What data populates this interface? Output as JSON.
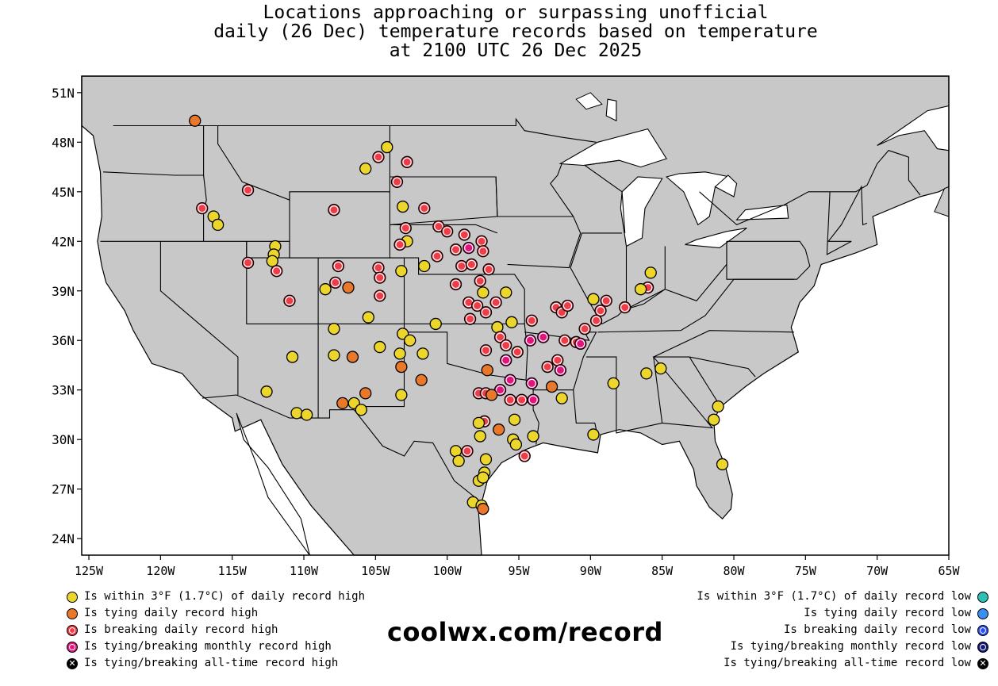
{
  "title": {
    "line1": "Locations approaching or surpassing unofficial",
    "line2": "daily (26 Dec) temperature records based on temperature",
    "line3": "at 2100 UTC 26 Dec 2025"
  },
  "chart_data": {
    "type": "scatter-map",
    "region": "Contiguous United States",
    "xaxis": {
      "ticks": [
        -125,
        -120,
        -115,
        -110,
        -105,
        -100,
        -95,
        -90,
        -85,
        -80,
        -75,
        -70,
        -65
      ],
      "labels": [
        "125W",
        "120W",
        "115W",
        "110W",
        "105W",
        "100W",
        "95W",
        "90W",
        "85W",
        "80W",
        "75W",
        "70W",
        "65W"
      ],
      "range": [
        -125.5,
        -65
      ]
    },
    "yaxis": {
      "ticks": [
        24,
        27,
        30,
        33,
        36,
        39,
        42,
        45,
        48,
        51
      ],
      "labels": [
        "24N",
        "27N",
        "30N",
        "33N",
        "36N",
        "39N",
        "42N",
        "45N",
        "48N",
        "51N"
      ],
      "range": [
        23,
        52
      ]
    },
    "colors": {
      "within_high": "#ecd62c",
      "tying_high": "#e9782a",
      "breaking_high": "#ee3d48",
      "monthly_high": "#e3157d",
      "within_low": "#2bc1b4",
      "tying_low": "#3b8ff2",
      "breaking_low": "#2b4ff0",
      "monthly_low": "#15197e",
      "land": "#c8c8c8",
      "water": "#ffffff"
    },
    "points": [
      {
        "lon": -117.6,
        "lat": 49.3,
        "cat": "tying_high"
      },
      {
        "lon": -104.2,
        "lat": 47.7,
        "cat": "within_high"
      },
      {
        "lon": -104.8,
        "lat": 47.1,
        "cat": "breaking_high"
      },
      {
        "lon": -105.7,
        "lat": 46.4,
        "cat": "within_high"
      },
      {
        "lon": -102.8,
        "lat": 46.8,
        "cat": "breaking_high"
      },
      {
        "lon": -113.9,
        "lat": 45.1,
        "cat": "breaking_high"
      },
      {
        "lon": -103.5,
        "lat": 45.6,
        "cat": "breaking_high"
      },
      {
        "lon": -103.1,
        "lat": 44.1,
        "cat": "within_high"
      },
      {
        "lon": -101.6,
        "lat": 44.0,
        "cat": "breaking_high"
      },
      {
        "lon": -117.1,
        "lat": 44.0,
        "cat": "breaking_high"
      },
      {
        "lon": -116.3,
        "lat": 43.5,
        "cat": "within_high"
      },
      {
        "lon": -116.0,
        "lat": 43.0,
        "cat": "within_high"
      },
      {
        "lon": -107.9,
        "lat": 43.9,
        "cat": "breaking_high"
      },
      {
        "lon": -102.9,
        "lat": 42.8,
        "cat": "breaking_high"
      },
      {
        "lon": -102.8,
        "lat": 42.0,
        "cat": "within_high"
      },
      {
        "lon": -103.3,
        "lat": 41.8,
        "cat": "breaking_high"
      },
      {
        "lon": -100.6,
        "lat": 42.9,
        "cat": "breaking_high"
      },
      {
        "lon": -100.0,
        "lat": 42.6,
        "cat": "breaking_high"
      },
      {
        "lon": -98.8,
        "lat": 42.4,
        "cat": "breaking_high"
      },
      {
        "lon": -99.4,
        "lat": 41.5,
        "cat": "breaking_high"
      },
      {
        "lon": -98.5,
        "lat": 41.6,
        "cat": "monthly_high"
      },
      {
        "lon": -97.6,
        "lat": 42.0,
        "cat": "breaking_high"
      },
      {
        "lon": -97.5,
        "lat": 41.4,
        "cat": "breaking_high"
      },
      {
        "lon": -100.7,
        "lat": 41.1,
        "cat": "breaking_high"
      },
      {
        "lon": -101.6,
        "lat": 40.5,
        "cat": "within_high"
      },
      {
        "lon": -99.0,
        "lat": 40.5,
        "cat": "breaking_high"
      },
      {
        "lon": -98.3,
        "lat": 40.6,
        "cat": "breaking_high"
      },
      {
        "lon": -97.1,
        "lat": 40.3,
        "cat": "breaking_high"
      },
      {
        "lon": -112.0,
        "lat": 41.7,
        "cat": "within_high"
      },
      {
        "lon": -112.1,
        "lat": 41.2,
        "cat": "within_high"
      },
      {
        "lon": -112.2,
        "lat": 40.8,
        "cat": "within_high"
      },
      {
        "lon": -111.9,
        "lat": 40.2,
        "cat": "breaking_high"
      },
      {
        "lon": -113.9,
        "lat": 40.7,
        "cat": "breaking_high"
      },
      {
        "lon": -107.6,
        "lat": 40.5,
        "cat": "breaking_high"
      },
      {
        "lon": -104.8,
        "lat": 40.4,
        "cat": "breaking_high"
      },
      {
        "lon": -104.7,
        "lat": 39.8,
        "cat": "breaking_high"
      },
      {
        "lon": -103.2,
        "lat": 40.2,
        "cat": "within_high"
      },
      {
        "lon": -107.8,
        "lat": 39.5,
        "cat": "breaking_high"
      },
      {
        "lon": -106.9,
        "lat": 39.2,
        "cat": "tying_high"
      },
      {
        "lon": -108.5,
        "lat": 39.1,
        "cat": "within_high"
      },
      {
        "lon": -104.7,
        "lat": 38.7,
        "cat": "breaking_high"
      },
      {
        "lon": -111.0,
        "lat": 38.4,
        "cat": "breaking_high"
      },
      {
        "lon": -105.5,
        "lat": 37.4,
        "cat": "within_high"
      },
      {
        "lon": -99.4,
        "lat": 39.4,
        "cat": "breaking_high"
      },
      {
        "lon": -97.7,
        "lat": 39.6,
        "cat": "breaking_high"
      },
      {
        "lon": -97.5,
        "lat": 38.9,
        "cat": "within_high"
      },
      {
        "lon": -95.9,
        "lat": 38.9,
        "cat": "within_high"
      },
      {
        "lon": -98.5,
        "lat": 38.3,
        "cat": "breaking_high"
      },
      {
        "lon": -97.9,
        "lat": 38.1,
        "cat": "breaking_high"
      },
      {
        "lon": -97.3,
        "lat": 37.7,
        "cat": "breaking_high"
      },
      {
        "lon": -96.6,
        "lat": 38.3,
        "cat": "breaking_high"
      },
      {
        "lon": -98.4,
        "lat": 37.3,
        "cat": "breaking_high"
      },
      {
        "lon": -95.5,
        "lat": 37.1,
        "cat": "within_high"
      },
      {
        "lon": -94.1,
        "lat": 37.2,
        "cat": "breaking_high"
      },
      {
        "lon": -100.8,
        "lat": 37.0,
        "cat": "within_high"
      },
      {
        "lon": -103.1,
        "lat": 36.4,
        "cat": "within_high"
      },
      {
        "lon": -102.6,
        "lat": 36.0,
        "cat": "within_high"
      },
      {
        "lon": -101.7,
        "lat": 35.2,
        "cat": "within_high"
      },
      {
        "lon": -104.7,
        "lat": 35.6,
        "cat": "within_high"
      },
      {
        "lon": -103.3,
        "lat": 35.2,
        "cat": "within_high"
      },
      {
        "lon": -103.2,
        "lat": 34.4,
        "cat": "tying_high"
      },
      {
        "lon": -101.8,
        "lat": 33.6,
        "cat": "tying_high"
      },
      {
        "lon": -103.2,
        "lat": 32.7,
        "cat": "within_high"
      },
      {
        "lon": -107.9,
        "lat": 36.7,
        "cat": "within_high"
      },
      {
        "lon": -107.9,
        "lat": 35.1,
        "cat": "within_high"
      },
      {
        "lon": -106.6,
        "lat": 35.0,
        "cat": "tying_high"
      },
      {
        "lon": -105.7,
        "lat": 32.8,
        "cat": "tying_high"
      },
      {
        "lon": -107.3,
        "lat": 32.2,
        "cat": "tying_high"
      },
      {
        "lon": -106.5,
        "lat": 32.2,
        "cat": "within_high"
      },
      {
        "lon": -106.0,
        "lat": 31.8,
        "cat": "within_high"
      },
      {
        "lon": -110.8,
        "lat": 35.0,
        "cat": "within_high"
      },
      {
        "lon": -112.6,
        "lat": 32.9,
        "cat": "within_high"
      },
      {
        "lon": -110.5,
        "lat": 31.6,
        "cat": "within_high"
      },
      {
        "lon": -109.8,
        "lat": 31.5,
        "cat": "within_high"
      },
      {
        "lon": -96.5,
        "lat": 36.8,
        "cat": "within_high"
      },
      {
        "lon": -96.3,
        "lat": 36.2,
        "cat": "breaking_high"
      },
      {
        "lon": -97.3,
        "lat": 35.4,
        "cat": "breaking_high"
      },
      {
        "lon": -95.9,
        "lat": 35.7,
        "cat": "breaking_high"
      },
      {
        "lon": -95.1,
        "lat": 35.3,
        "cat": "breaking_high"
      },
      {
        "lon": -94.2,
        "lat": 36.0,
        "cat": "monthly_high"
      },
      {
        "lon": -93.3,
        "lat": 36.2,
        "cat": "monthly_high"
      },
      {
        "lon": -91.8,
        "lat": 36.0,
        "cat": "breaking_high"
      },
      {
        "lon": -92.3,
        "lat": 34.8,
        "cat": "breaking_high"
      },
      {
        "lon": -93.0,
        "lat": 34.4,
        "cat": "breaking_high"
      },
      {
        "lon": -92.1,
        "lat": 34.2,
        "cat": "monthly_high"
      },
      {
        "lon": -95.9,
        "lat": 34.8,
        "cat": "monthly_high"
      },
      {
        "lon": -97.2,
        "lat": 34.2,
        "cat": "tying_high"
      },
      {
        "lon": -95.6,
        "lat": 33.6,
        "cat": "monthly_high"
      },
      {
        "lon": -94.1,
        "lat": 33.4,
        "cat": "monthly_high"
      },
      {
        "lon": -96.3,
        "lat": 33.0,
        "cat": "monthly_high"
      },
      {
        "lon": -92.7,
        "lat": 33.2,
        "cat": "tying_high"
      },
      {
        "lon": -97.8,
        "lat": 32.8,
        "cat": "breaking_high"
      },
      {
        "lon": -97.3,
        "lat": 32.8,
        "cat": "breaking_high"
      },
      {
        "lon": -96.9,
        "lat": 32.7,
        "cat": "tying_high"
      },
      {
        "lon": -95.6,
        "lat": 32.4,
        "cat": "breaking_high"
      },
      {
        "lon": -94.8,
        "lat": 32.4,
        "cat": "breaking_high"
      },
      {
        "lon": -94.0,
        "lat": 32.4,
        "cat": "monthly_high"
      },
      {
        "lon": -92.0,
        "lat": 32.5,
        "cat": "within_high"
      },
      {
        "lon": -97.4,
        "lat": 31.1,
        "cat": "breaking_high"
      },
      {
        "lon": -97.8,
        "lat": 31.0,
        "cat": "within_high"
      },
      {
        "lon": -95.3,
        "lat": 31.2,
        "cat": "within_high"
      },
      {
        "lon": -96.4,
        "lat": 30.6,
        "cat": "tying_high"
      },
      {
        "lon": -97.7,
        "lat": 30.2,
        "cat": "within_high"
      },
      {
        "lon": -95.4,
        "lat": 30.0,
        "cat": "within_high"
      },
      {
        "lon": -95.2,
        "lat": 29.7,
        "cat": "within_high"
      },
      {
        "lon": -94.0,
        "lat": 30.2,
        "cat": "within_high"
      },
      {
        "lon": -94.6,
        "lat": 29.0,
        "cat": "breaking_high"
      },
      {
        "lon": -98.6,
        "lat": 29.3,
        "cat": "breaking_high"
      },
      {
        "lon": -99.4,
        "lat": 29.3,
        "cat": "within_high"
      },
      {
        "lon": -99.2,
        "lat": 28.7,
        "cat": "within_high"
      },
      {
        "lon": -97.3,
        "lat": 28.8,
        "cat": "within_high"
      },
      {
        "lon": -97.4,
        "lat": 28.0,
        "cat": "within_high"
      },
      {
        "lon": -97.8,
        "lat": 27.5,
        "cat": "within_high"
      },
      {
        "lon": -97.5,
        "lat": 27.7,
        "cat": "within_high"
      },
      {
        "lon": -98.2,
        "lat": 26.2,
        "cat": "within_high"
      },
      {
        "lon": -97.6,
        "lat": 26.0,
        "cat": "within_high"
      },
      {
        "lon": -97.5,
        "lat": 25.8,
        "cat": "tying_high"
      },
      {
        "lon": -92.4,
        "lat": 38.0,
        "cat": "breaking_high"
      },
      {
        "lon": -92.0,
        "lat": 37.7,
        "cat": "breaking_high"
      },
      {
        "lon": -91.6,
        "lat": 38.1,
        "cat": "breaking_high"
      },
      {
        "lon": -89.8,
        "lat": 38.5,
        "cat": "within_high"
      },
      {
        "lon": -89.3,
        "lat": 37.8,
        "cat": "breaking_high"
      },
      {
        "lon": -88.9,
        "lat": 38.4,
        "cat": "breaking_high"
      },
      {
        "lon": -89.6,
        "lat": 37.2,
        "cat": "breaking_high"
      },
      {
        "lon": -90.4,
        "lat": 36.7,
        "cat": "breaking_high"
      },
      {
        "lon": -91.0,
        "lat": 35.9,
        "cat": "breaking_high"
      },
      {
        "lon": -90.7,
        "lat": 35.8,
        "cat": "monthly_high"
      },
      {
        "lon": -87.6,
        "lat": 38.0,
        "cat": "breaking_high"
      },
      {
        "lon": -86.0,
        "lat": 39.2,
        "cat": "breaking_high"
      },
      {
        "lon": -86.5,
        "lat": 39.1,
        "cat": "within_high"
      },
      {
        "lon": -85.8,
        "lat": 40.1,
        "cat": "within_high"
      },
      {
        "lon": -86.1,
        "lat": 34.0,
        "cat": "within_high"
      },
      {
        "lon": -85.1,
        "lat": 34.3,
        "cat": "within_high"
      },
      {
        "lon": -88.4,
        "lat": 33.4,
        "cat": "within_high"
      },
      {
        "lon": -89.8,
        "lat": 30.3,
        "cat": "within_high"
      },
      {
        "lon": -81.1,
        "lat": 32.0,
        "cat": "within_high"
      },
      {
        "lon": -81.4,
        "lat": 31.2,
        "cat": "within_high"
      },
      {
        "lon": -80.8,
        "lat": 28.5,
        "cat": "within_high"
      }
    ]
  },
  "legend": {
    "left": [
      {
        "label": "Is within 3°F (1.7°C) of daily record high",
        "cat": "within_high"
      },
      {
        "label": "Is tying daily record high",
        "cat": "tying_high"
      },
      {
        "label": "Is breaking daily record high",
        "cat": "breaking_high"
      },
      {
        "label": "Is tying/breaking monthly record high",
        "cat": "monthly_high"
      },
      {
        "label": "Is tying/breaking all-time record high",
        "cat": "alltime_high"
      }
    ],
    "right": [
      {
        "label": "Is within 3°F (1.7°C) of daily record low",
        "cat": "within_low"
      },
      {
        "label": "Is tying daily record low",
        "cat": "tying_low"
      },
      {
        "label": "Is breaking daily record low",
        "cat": "breaking_low"
      },
      {
        "label": "Is tying/breaking monthly record low",
        "cat": "monthly_low"
      },
      {
        "label": "Is tying/breaking all-time record low",
        "cat": "alltime_low"
      }
    ]
  },
  "brand": "coolwx.com/record"
}
